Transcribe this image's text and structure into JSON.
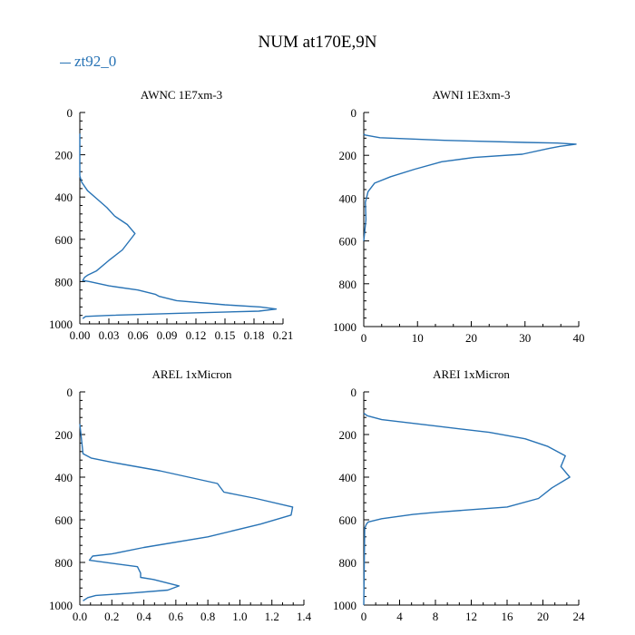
{
  "figure": {
    "title": "NUM at170E,9N",
    "legend_label": "zt92_0",
    "series_color": "#2873b5"
  },
  "chart_data": [
    {
      "type": "line",
      "title": "AWNC  1E7xm-3",
      "xlabel": "",
      "ylabel": "",
      "xlim": [
        0,
        0.21
      ],
      "ylim": [
        1000,
        0
      ],
      "x_ticks": [
        "0.00",
        "0.03",
        "0.06",
        "0.09",
        "0.12",
        "0.15",
        "0.18",
        "0.21"
      ],
      "y_ticks": [
        "0",
        "200",
        "400",
        "600",
        "800",
        "1000"
      ],
      "series": [
        {
          "name": "zt92_0",
          "x": [
            0.0,
            0.0,
            0.002,
            0.008,
            0.018,
            0.028,
            0.036,
            0.049,
            0.057,
            0.044,
            0.03,
            0.017,
            0.008,
            0.005,
            0.003,
            0.01,
            0.03,
            0.06,
            0.078,
            0.082,
            0.1,
            0.15,
            0.187,
            0.203,
            0.185,
            0.1,
            0.03,
            0.006,
            0.003
          ],
          "y": [
            100,
            300,
            330,
            370,
            410,
            450,
            490,
            530,
            573,
            650,
            700,
            750,
            770,
            780,
            795,
            800,
            820,
            840,
            860,
            870,
            890,
            910,
            920,
            930,
            940,
            950,
            960,
            965,
            975
          ]
        }
      ]
    },
    {
      "type": "line",
      "title": "AWNI  1E3xm-3",
      "xlabel": "",
      "ylabel": "",
      "xlim": [
        0,
        40
      ],
      "ylim": [
        1000,
        0
      ],
      "x_ticks": [
        "0",
        "10",
        "20",
        "30",
        "40"
      ],
      "y_ticks": [
        "0",
        "200",
        "400",
        "600",
        "800",
        "1000"
      ],
      "series": [
        {
          "name": "zt92_0",
          "x": [
            0.0,
            0.2,
            3.0,
            15.0,
            30.0,
            36.0,
            39.5,
            36.5,
            34.5,
            29.5,
            20.5,
            14.5,
            9.5,
            5.0,
            2.0,
            0.8,
            0.3,
            0.4,
            0.2,
            0.0
          ],
          "y": [
            100,
            105,
            118,
            130,
            140,
            143,
            148,
            158,
            168,
            195,
            210,
            230,
            265,
            300,
            330,
            370,
            420,
            500,
            550,
            600
          ]
        }
      ]
    },
    {
      "type": "line",
      "title": "AREL  1xMicron",
      "xlabel": "",
      "ylabel": "",
      "xlim": [
        0,
        1.4
      ],
      "ylim": [
        1000,
        0
      ],
      "x_ticks": [
        "0.0",
        "0.2",
        "0.4",
        "0.6",
        "0.8",
        "1.0",
        "1.2",
        "1.4"
      ],
      "y_ticks": [
        "0",
        "200",
        "400",
        "600",
        "800",
        "1000"
      ],
      "series": [
        {
          "name": "zt92_0",
          "x": [
            0.0,
            0.02,
            0.07,
            0.2,
            0.5,
            0.86,
            0.9,
            1.1,
            1.33,
            1.32,
            1.13,
            0.8,
            0.4,
            0.2,
            0.08,
            0.06,
            0.36,
            0.38,
            0.38,
            0.46,
            0.62,
            0.55,
            0.3,
            0.1,
            0.05,
            0.02
          ],
          "y": [
            150,
            290,
            310,
            330,
            370,
            430,
            470,
            500,
            540,
            578,
            620,
            680,
            730,
            760,
            770,
            790,
            820,
            850,
            870,
            880,
            910,
            930,
            945,
            955,
            965,
            980
          ]
        }
      ]
    },
    {
      "type": "line",
      "title": "AREI  1xMicron",
      "xlabel": "",
      "ylabel": "",
      "xlim": [
        0,
        24
      ],
      "ylim": [
        1000,
        0
      ],
      "x_ticks": [
        "0",
        "4",
        "8",
        "12",
        "16",
        "20",
        "24"
      ],
      "y_ticks": [
        "0",
        "200",
        "400",
        "600",
        "800",
        "1000"
      ],
      "series": [
        {
          "name": "zt92_0",
          "x": [
            0.0,
            0.4,
            2.0,
            8.0,
            14.0,
            18.0,
            20.5,
            22.5,
            22.0,
            23.0,
            21.0,
            19.5,
            16.0,
            8.0,
            5.5,
            2.0,
            0.5,
            0.3,
            0.1,
            0.0
          ],
          "y": [
            100,
            112,
            130,
            160,
            190,
            220,
            255,
            300,
            350,
            400,
            450,
            500,
            540,
            565,
            575,
            595,
            610,
            620,
            640,
            1000
          ]
        }
      ]
    }
  ]
}
